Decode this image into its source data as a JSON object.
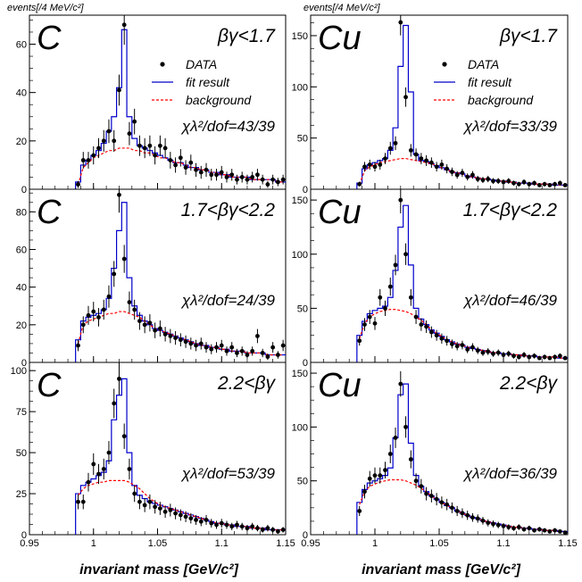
{
  "figure": {
    "ylabel": "events[/4 MeV/c²]",
    "xlabel": "invariant mass [GeV/c²]",
    "x_ticks": [
      "0.95",
      "1",
      "1.05",
      "1.1",
      "1.15"
    ]
  },
  "legend": {
    "data": "DATA",
    "fit": "fit result",
    "background": "background"
  },
  "colors": {
    "data": "#000000",
    "fit": "#0000cc",
    "background": "#ff0000"
  },
  "chart_data": [
    {
      "type": "histogram",
      "target": "C",
      "range": "βγ<1.7",
      "chi2": "χλ²/dof=43/39",
      "xlim": [
        0.95,
        1.15
      ],
      "ylim": [
        0,
        72
      ],
      "yticks": [
        0,
        20,
        40,
        60
      ],
      "x": [
        0.988,
        0.992,
        0.996,
        1.0,
        1.004,
        1.008,
        1.012,
        1.016,
        1.02,
        1.024,
        1.028,
        1.032,
        1.036,
        1.04,
        1.044,
        1.048,
        1.052,
        1.056,
        1.06,
        1.064,
        1.068,
        1.072,
        1.076,
        1.08,
        1.084,
        1.088,
        1.092,
        1.096,
        1.1,
        1.104,
        1.108,
        1.112,
        1.116,
        1.12,
        1.124,
        1.128,
        1.132,
        1.136,
        1.14,
        1.144,
        1.148
      ],
      "data": [
        2,
        12,
        12,
        14,
        17,
        20,
        24,
        20,
        41,
        68,
        23,
        28,
        18,
        17,
        18,
        14,
        18,
        17,
        12,
        10,
        13,
        9,
        11,
        8,
        7,
        8,
        6,
        6,
        7,
        5,
        6,
        4,
        5,
        4,
        5,
        6,
        4,
        2,
        4,
        3,
        4
      ],
      "fit": [
        3,
        10,
        12,
        14,
        16,
        19,
        24,
        30,
        42,
        66,
        30,
        21,
        18,
        17,
        16,
        15,
        14,
        13,
        12,
        11,
        11,
        10,
        9,
        9,
        8,
        8,
        7,
        7,
        6,
        6,
        5,
        5,
        5,
        5,
        4,
        4,
        4,
        4,
        4,
        3,
        3
      ],
      "background": [
        2,
        9,
        11,
        13,
        14,
        15,
        16,
        16,
        17,
        17,
        17,
        16,
        16,
        15,
        15,
        14,
        13,
        13,
        12,
        11,
        11,
        10,
        9,
        9,
        8,
        8,
        7,
        7,
        6,
        6,
        5,
        5,
        5,
        5,
        4,
        4,
        4,
        4,
        4,
        3,
        3
      ]
    },
    {
      "type": "histogram",
      "target": "Cu",
      "range": "βγ<1.7",
      "chi2": "χλ²/dof=33/39",
      "xlim": [
        0.95,
        1.15
      ],
      "ylim": [
        0,
        170
      ],
      "yticks": [
        0,
        50,
        100,
        150
      ],
      "x": [
        0.988,
        0.992,
        0.996,
        1.0,
        1.004,
        1.008,
        1.012,
        1.016,
        1.02,
        1.024,
        1.028,
        1.032,
        1.036,
        1.04,
        1.044,
        1.048,
        1.052,
        1.056,
        1.06,
        1.064,
        1.068,
        1.072,
        1.076,
        1.08,
        1.084,
        1.088,
        1.092,
        1.096,
        1.1,
        1.104,
        1.108,
        1.112,
        1.116,
        1.12,
        1.124,
        1.128,
        1.132,
        1.136,
        1.14,
        1.144,
        1.148
      ],
      "data": [
        5,
        22,
        24,
        22,
        24,
        30,
        40,
        45,
        163,
        90,
        38,
        34,
        30,
        28,
        26,
        22,
        24,
        20,
        17,
        14,
        16,
        12,
        14,
        10,
        9,
        10,
        8,
        8,
        7,
        8,
        6,
        5,
        7,
        5,
        6,
        4,
        5,
        4,
        5,
        6,
        4
      ],
      "fit": [
        6,
        20,
        24,
        26,
        28,
        30,
        38,
        60,
        120,
        160,
        95,
        34,
        28,
        27,
        25,
        23,
        21,
        19,
        17,
        16,
        15,
        13,
        12,
        11,
        10,
        10,
        9,
        8,
        8,
        7,
        7,
        6,
        6,
        6,
        5,
        5,
        5,
        5,
        4,
        4,
        4
      ],
      "background": [
        5,
        18,
        22,
        24,
        26,
        27,
        28,
        29,
        30,
        30,
        29,
        28,
        27,
        26,
        25,
        23,
        21,
        19,
        17,
        16,
        15,
        13,
        12,
        11,
        10,
        10,
        9,
        8,
        8,
        7,
        7,
        6,
        6,
        6,
        5,
        5,
        5,
        5,
        4,
        4,
        4
      ]
    },
    {
      "type": "histogram",
      "target": "C",
      "range": "1.7<βγ<2.2",
      "chi2": "χλ²/dof=24/39",
      "xlim": [
        0.95,
        1.15
      ],
      "ylim": [
        0,
        92
      ],
      "yticks": [
        0,
        20,
        40,
        60,
        80
      ],
      "x": [
        0.988,
        0.992,
        0.996,
        1.0,
        1.004,
        1.008,
        1.012,
        1.016,
        1.02,
        1.024,
        1.028,
        1.032,
        1.036,
        1.04,
        1.044,
        1.048,
        1.052,
        1.056,
        1.06,
        1.064,
        1.068,
        1.072,
        1.076,
        1.08,
        1.084,
        1.088,
        1.092,
        1.096,
        1.1,
        1.104,
        1.108,
        1.112,
        1.116,
        1.12,
        1.124,
        1.128,
        1.132,
        1.136,
        1.14,
        1.144,
        1.148
      ],
      "data": [
        9,
        20,
        25,
        27,
        24,
        28,
        35,
        47,
        89,
        55,
        32,
        28,
        22,
        20,
        21,
        17,
        18,
        15,
        14,
        13,
        12,
        11,
        10,
        9,
        10,
        8,
        7,
        8,
        9,
        6,
        8,
        5,
        6,
        4,
        6,
        14,
        5,
        3,
        8,
        4,
        9
      ],
      "fit": [
        12,
        22,
        24,
        25,
        26,
        28,
        34,
        50,
        70,
        85,
        45,
        30,
        25,
        22,
        20,
        18,
        17,
        16,
        15,
        14,
        13,
        12,
        11,
        10,
        9,
        9,
        8,
        8,
        7,
        7,
        6,
        6,
        6,
        5,
        5,
        5,
        5,
        4,
        4,
        4,
        4
      ],
      "background": [
        10,
        20,
        22,
        23,
        24,
        25,
        26,
        26,
        27,
        27,
        26,
        25,
        24,
        22,
        20,
        18,
        17,
        16,
        15,
        14,
        13,
        12,
        11,
        10,
        9,
        9,
        8,
        8,
        7,
        7,
        6,
        6,
        6,
        5,
        5,
        5,
        5,
        4,
        4,
        4,
        4
      ]
    },
    {
      "type": "histogram",
      "target": "Cu",
      "range": "1.7<βγ<2.2",
      "chi2": "χλ²/dof=46/39",
      "xlim": [
        0.95,
        1.15
      ],
      "ylim": [
        0,
        160
      ],
      "yticks": [
        0,
        50,
        100,
        150
      ],
      "x": [
        0.988,
        0.992,
        0.996,
        1.0,
        1.004,
        1.008,
        1.012,
        1.016,
        1.02,
        1.024,
        1.028,
        1.032,
        1.036,
        1.04,
        1.044,
        1.048,
        1.052,
        1.056,
        1.06,
        1.064,
        1.068,
        1.072,
        1.076,
        1.08,
        1.084,
        1.088,
        1.092,
        1.096,
        1.1,
        1.104,
        1.108,
        1.112,
        1.116,
        1.12,
        1.124,
        1.128,
        1.132,
        1.136,
        1.14,
        1.144,
        1.148
      ],
      "data": [
        20,
        35,
        42,
        36,
        60,
        50,
        70,
        90,
        150,
        100,
        60,
        42,
        35,
        33,
        28,
        25,
        22,
        20,
        17,
        15,
        16,
        12,
        14,
        11,
        9,
        10,
        8,
        9,
        7,
        8,
        6,
        5,
        7,
        5,
        6,
        4,
        5,
        4,
        5,
        6,
        4
      ],
      "fit": [
        25,
        38,
        45,
        48,
        50,
        52,
        60,
        85,
        125,
        145,
        90,
        50,
        40,
        35,
        30,
        27,
        24,
        21,
        19,
        17,
        16,
        14,
        13,
        12,
        11,
        10,
        9,
        9,
        8,
        8,
        7,
        7,
        6,
        6,
        6,
        5,
        5,
        5,
        5,
        4,
        4
      ],
      "background": [
        22,
        36,
        42,
        45,
        47,
        48,
        49,
        49,
        48,
        47,
        45,
        42,
        39,
        35,
        30,
        27,
        24,
        21,
        19,
        17,
        16,
        14,
        13,
        12,
        11,
        10,
        9,
        9,
        8,
        8,
        7,
        7,
        6,
        6,
        6,
        5,
        5,
        5,
        5,
        4,
        4
      ]
    },
    {
      "type": "histogram",
      "target": "C",
      "range": "2.2<βγ",
      "chi2": "χλ²/dof=53/39",
      "xlim": [
        0.95,
        1.15
      ],
      "ylim": [
        0,
        105
      ],
      "yticks": [
        0,
        25,
        50,
        75,
        100
      ],
      "x": [
        0.988,
        0.992,
        0.996,
        1.0,
        1.004,
        1.008,
        1.012,
        1.016,
        1.02,
        1.024,
        1.028,
        1.032,
        1.036,
        1.04,
        1.044,
        1.048,
        1.052,
        1.056,
        1.06,
        1.064,
        1.068,
        1.072,
        1.076,
        1.08,
        1.084,
        1.088,
        1.092,
        1.096,
        1.1,
        1.104,
        1.108,
        1.112,
        1.116,
        1.12,
        1.124,
        1.128,
        1.132,
        1.136,
        1.14,
        1.144,
        1.148
      ],
      "data": [
        20,
        20,
        32,
        43,
        37,
        40,
        50,
        80,
        95,
        60,
        40,
        25,
        20,
        18,
        20,
        17,
        16,
        14,
        15,
        13,
        12,
        11,
        10,
        9,
        8,
        9,
        7,
        6,
        7,
        6,
        5,
        6,
        5,
        4,
        5,
        4,
        3,
        4,
        3,
        2,
        3
      ],
      "fit": [
        25,
        30,
        32,
        34,
        36,
        38,
        45,
        70,
        85,
        95,
        50,
        30,
        24,
        22,
        20,
        19,
        18,
        17,
        16,
        15,
        14,
        13,
        12,
        11,
        10,
        9,
        8,
        7,
        7,
        6,
        6,
        5,
        5,
        5,
        4,
        4,
        4,
        3,
        3,
        3,
        3
      ],
      "background": [
        24,
        28,
        30,
        31,
        32,
        32,
        33,
        33,
        33,
        33,
        32,
        30,
        28,
        25,
        22,
        20,
        18,
        17,
        16,
        15,
        14,
        13,
        12,
        11,
        10,
        9,
        8,
        7,
        7,
        6,
        6,
        5,
        5,
        5,
        4,
        4,
        4,
        3,
        3,
        3,
        3
      ]
    },
    {
      "type": "histogram",
      "target": "Cu",
      "range": "2.2<βγ",
      "chi2": "χλ²/dof=36/39",
      "xlim": [
        0.95,
        1.15
      ],
      "ylim": [
        0,
        160
      ],
      "yticks": [
        0,
        50,
        100,
        150
      ],
      "x": [
        0.988,
        0.992,
        0.996,
        1.0,
        1.004,
        1.008,
        1.012,
        1.016,
        1.02,
        1.024,
        1.028,
        1.032,
        1.036,
        1.04,
        1.044,
        1.048,
        1.052,
        1.056,
        1.06,
        1.064,
        1.068,
        1.072,
        1.076,
        1.08,
        1.084,
        1.088,
        1.092,
        1.096,
        1.1,
        1.104,
        1.108,
        1.112,
        1.116,
        1.12,
        1.124,
        1.128,
        1.132,
        1.136,
        1.14,
        1.144,
        1.148
      ],
      "data": [
        22,
        40,
        52,
        55,
        55,
        60,
        75,
        90,
        140,
        100,
        70,
        50,
        45,
        38,
        36,
        33,
        30,
        28,
        25,
        22,
        20,
        18,
        16,
        15,
        13,
        11,
        10,
        9,
        8,
        7,
        6,
        7,
        5,
        6,
        4,
        5,
        4,
        3,
        4,
        3,
        2
      ],
      "fit": [
        30,
        42,
        48,
        50,
        52,
        55,
        62,
        90,
        130,
        140,
        85,
        55,
        45,
        40,
        36,
        33,
        30,
        27,
        25,
        22,
        20,
        18,
        16,
        15,
        13,
        12,
        11,
        10,
        9,
        8,
        7,
        7,
        6,
        6,
        5,
        5,
        4,
        4,
        4,
        3,
        3
      ],
      "background": [
        28,
        40,
        45,
        47,
        49,
        50,
        51,
        51,
        51,
        50,
        48,
        46,
        43,
        40,
        36,
        33,
        30,
        27,
        25,
        22,
        20,
        18,
        16,
        15,
        13,
        12,
        11,
        10,
        9,
        8,
        7,
        7,
        6,
        6,
        5,
        5,
        4,
        4,
        4,
        3,
        3
      ]
    }
  ]
}
